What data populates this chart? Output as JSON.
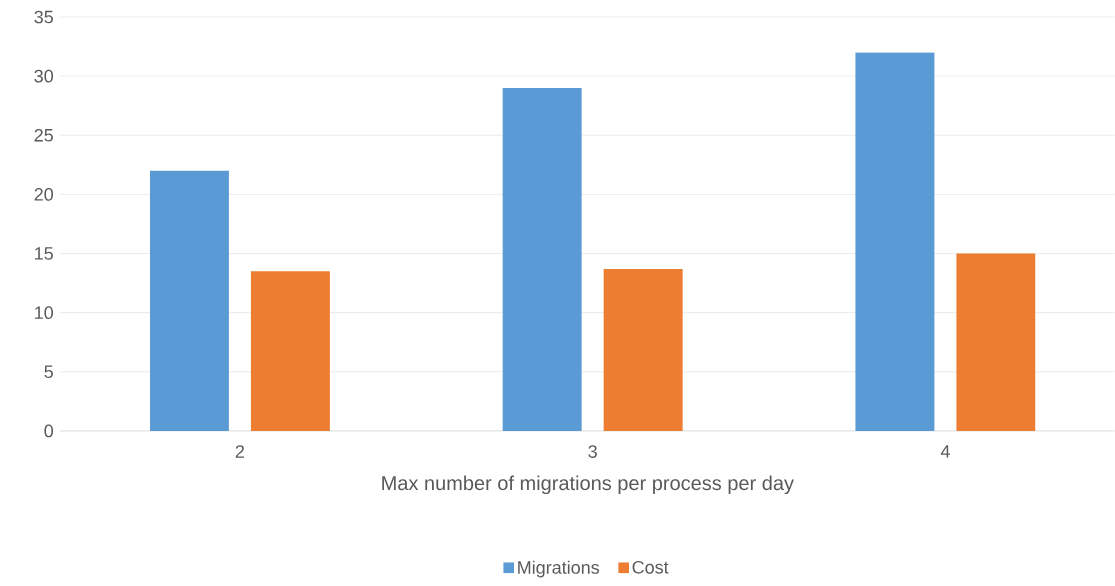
{
  "chart_data": {
    "type": "bar",
    "xlabel": "Max number of migrations per process per day",
    "categories": [
      "2",
      "3",
      "4"
    ],
    "series": [
      {
        "name": "Migrations",
        "color": "#5b9bd5",
        "values": [
          22,
          29,
          32
        ]
      },
      {
        "name": "Cost",
        "color": "#ed7d31",
        "values": [
          13.5,
          13.7,
          15
        ]
      }
    ],
    "ylim": [
      0,
      35
    ],
    "yticks": [
      0,
      5,
      10,
      15,
      20,
      25,
      30,
      35
    ],
    "grid": "y",
    "legend": "bottom"
  }
}
